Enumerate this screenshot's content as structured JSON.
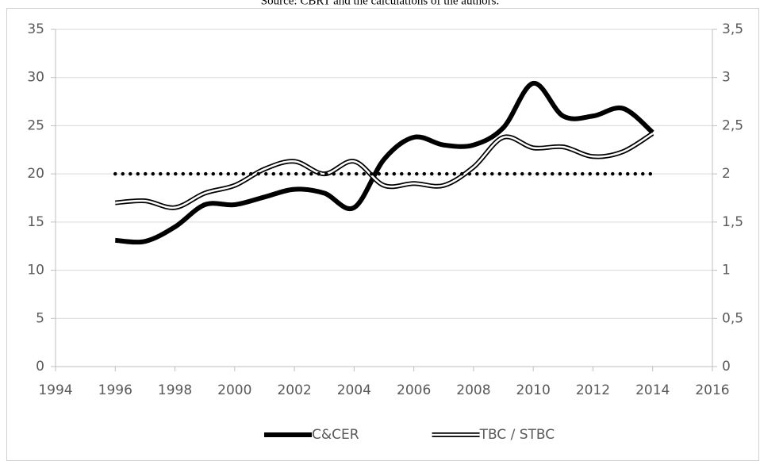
{
  "caption": "Source: CBRT and the calculations of the authors.",
  "chart_data": {
    "type": "line",
    "x": [
      1996,
      1997,
      1998,
      1999,
      2000,
      2001,
      2002,
      2003,
      2004,
      2005,
      2006,
      2007,
      2008,
      2009,
      2010,
      2011,
      2012,
      2013,
      2014
    ],
    "series": [
      {
        "name": "C&CER",
        "color": "#000000",
        "style": "thick",
        "values": [
          13.1,
          13.0,
          14.5,
          16.8,
          16.8,
          17.6,
          18.4,
          18.0,
          16.5,
          21.5,
          23.8,
          23.0,
          23.0,
          24.8,
          29.4,
          26.0,
          26.0,
          26.8,
          24.3
        ]
      },
      {
        "name": "TBC / STBC",
        "color": "#000000",
        "style": "double",
        "axis": "y2",
        "values": [
          1.7,
          1.72,
          1.65,
          1.8,
          1.88,
          2.05,
          2.13,
          2.0,
          2.13,
          1.88,
          1.9,
          1.88,
          2.07,
          2.38,
          2.27,
          2.28,
          2.18,
          2.23,
          2.42
        ]
      },
      {
        "color": "#000000",
        "style": "dotted",
        "axis": "y2",
        "values": [
          2,
          2,
          2,
          2,
          2,
          2,
          2,
          2,
          2,
          2,
          2,
          2,
          2,
          2,
          2,
          2,
          2,
          2,
          2
        ]
      }
    ],
    "xlim": [
      1994,
      2016
    ],
    "xticks": [
      1994,
      1996,
      1998,
      2000,
      2002,
      2004,
      2006,
      2008,
      2010,
      2012,
      2014,
      2016
    ],
    "ylim": [
      0,
      35
    ],
    "yticks": [
      0,
      5,
      10,
      15,
      20,
      25,
      30,
      35
    ],
    "y2lim": [
      0,
      3.5
    ],
    "y2ticks": [
      0,
      {
        "value": 0.5,
        "label": "0,5"
      },
      1,
      {
        "value": 1.5,
        "label": "1,5"
      },
      2,
      {
        "value": 2.5,
        "label": "2,5"
      },
      3,
      {
        "value": 3.5,
        "label": "3,5"
      }
    ],
    "grid": true,
    "legend": "bottom"
  }
}
